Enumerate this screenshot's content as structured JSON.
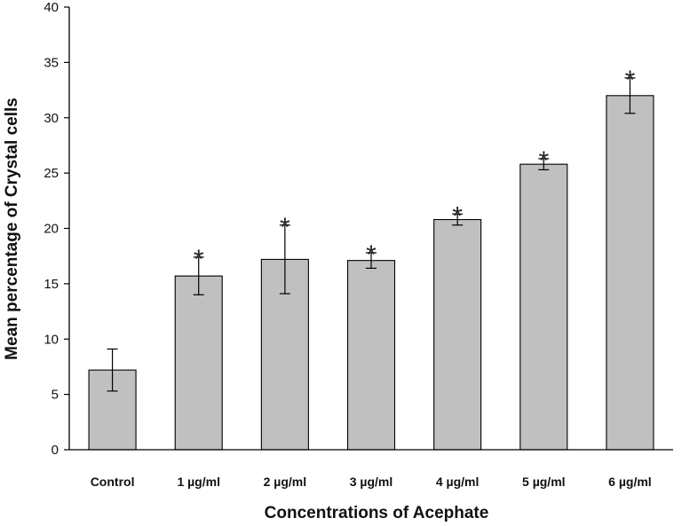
{
  "chart_data": {
    "type": "bar",
    "title": "",
    "xlabel": "Concentrations of Acephate",
    "ylabel": "Mean percentage of Crystal cells",
    "categories": [
      "Control",
      "1 µg/ml",
      "2 µg/ml",
      "3 µg/ml",
      "4 µg/ml",
      "5 µg/ml",
      "6 µg/ml"
    ],
    "values": [
      7.2,
      15.7,
      17.2,
      17.1,
      20.8,
      25.8,
      32.0
    ],
    "errors": [
      1.9,
      1.7,
      3.1,
      0.7,
      0.5,
      0.5,
      1.6
    ],
    "significance": [
      "",
      "*",
      "*",
      "*",
      "*",
      "*",
      "*"
    ],
    "ylim": [
      0,
      40
    ],
    "yticks": [
      0,
      5,
      10,
      15,
      20,
      25,
      30,
      35,
      40
    ],
    "grid": false,
    "legend": "none",
    "bar_color": "#c0c0c0",
    "bar_edge_color": "#000000"
  }
}
